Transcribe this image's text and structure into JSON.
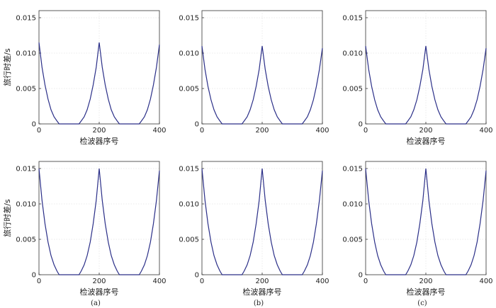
{
  "figure": {
    "panel_labels": [
      "(a)",
      "(b)",
      "(c)"
    ]
  },
  "style": {
    "line_color": "#2b2f88",
    "grid": true
  },
  "chart_data": [
    {
      "type": "line",
      "row": 1,
      "col": 1,
      "xlabel": "检波器序号",
      "ylabel": "旅行时差/s",
      "xlim": [
        0,
        400
      ],
      "ylim": [
        0,
        0.016
      ],
      "xticks": [
        "0",
        "200",
        "400"
      ],
      "yticks": [
        "0",
        "0.005",
        "0.010",
        "0.015"
      ],
      "series": [
        {
          "x": [
            0,
            10,
            20,
            30,
            40,
            50,
            60,
            67,
            133,
            140,
            150,
            160,
            170,
            180,
            190,
            200,
            210,
            220,
            230,
            240,
            250,
            260,
            267,
            333,
            340,
            350,
            360,
            370,
            380,
            390,
            400
          ],
          "y": [
            0.0115,
            0.008,
            0.0055,
            0.0035,
            0.002,
            0.001,
            0.0004,
            0,
            0,
            0.0004,
            0.001,
            0.002,
            0.0035,
            0.0055,
            0.008,
            0.0115,
            0.008,
            0.0055,
            0.0035,
            0.002,
            0.001,
            0.0004,
            0,
            0,
            0.0004,
            0.001,
            0.002,
            0.0035,
            0.0055,
            0.008,
            0.0112
          ]
        }
      ]
    },
    {
      "type": "line",
      "row": 1,
      "col": 2,
      "xlabel": "",
      "ylabel": "",
      "xlim": [
        0,
        400
      ],
      "ylim": [
        0,
        0.016
      ],
      "xticks": [
        "0",
        "200",
        "400"
      ],
      "yticks": [
        "0",
        "0.005",
        "0.010",
        "0.015"
      ],
      "series": [
        {
          "x": [
            0,
            10,
            20,
            30,
            40,
            50,
            60,
            67,
            133,
            140,
            150,
            160,
            170,
            180,
            190,
            200,
            210,
            220,
            230,
            240,
            250,
            260,
            267,
            333,
            340,
            350,
            360,
            370,
            380,
            390,
            400
          ],
          "y": [
            0.011,
            0.0077,
            0.0053,
            0.0034,
            0.002,
            0.001,
            0.0004,
            0,
            0,
            0.0004,
            0.001,
            0.002,
            0.0034,
            0.0053,
            0.0077,
            0.011,
            0.0077,
            0.0053,
            0.0034,
            0.002,
            0.001,
            0.0004,
            0,
            0,
            0.0004,
            0.001,
            0.002,
            0.0034,
            0.0053,
            0.0077,
            0.0107
          ]
        }
      ]
    },
    {
      "type": "line",
      "row": 1,
      "col": 3,
      "xlabel": "检波器序号",
      "ylabel": "",
      "xlim": [
        0,
        400
      ],
      "ylim": [
        0,
        0.016
      ],
      "xticks": [
        "0",
        "200",
        "400"
      ],
      "yticks": [
        "0",
        "0.005",
        "0.010",
        "0.015"
      ],
      "series": [
        {
          "x": [
            0,
            10,
            20,
            30,
            40,
            50,
            60,
            67,
            133,
            140,
            150,
            160,
            170,
            180,
            190,
            200,
            210,
            220,
            230,
            240,
            250,
            260,
            267,
            333,
            340,
            350,
            360,
            370,
            380,
            390,
            400
          ],
          "y": [
            0.011,
            0.0077,
            0.0053,
            0.0034,
            0.002,
            0.001,
            0.0004,
            0,
            0,
            0.0004,
            0.001,
            0.002,
            0.0034,
            0.0053,
            0.0077,
            0.011,
            0.0077,
            0.0053,
            0.0034,
            0.002,
            0.001,
            0.0004,
            0,
            0,
            0.0004,
            0.001,
            0.002,
            0.0034,
            0.0053,
            0.0077,
            0.0107
          ]
        }
      ]
    },
    {
      "type": "line",
      "row": 2,
      "col": 1,
      "xlabel": "检波器序号",
      "ylabel": "旅行时差/s",
      "xlim": [
        0,
        400
      ],
      "ylim": [
        0,
        0.016
      ],
      "xticks": [
        "0",
        "200",
        "400"
      ],
      "yticks": [
        "0",
        "0.005",
        "0.010",
        "0.015"
      ],
      "series": [
        {
          "x": [
            0,
            10,
            20,
            30,
            40,
            50,
            60,
            67,
            133,
            140,
            150,
            160,
            170,
            180,
            190,
            200,
            210,
            220,
            230,
            240,
            250,
            260,
            267,
            333,
            340,
            350,
            360,
            370,
            380,
            390,
            400
          ],
          "y": [
            0.015,
            0.0105,
            0.0072,
            0.0046,
            0.0027,
            0.0014,
            0.0005,
            0,
            0,
            0.0005,
            0.0014,
            0.0027,
            0.0046,
            0.0072,
            0.0105,
            0.015,
            0.0105,
            0.0072,
            0.0046,
            0.0027,
            0.0014,
            0.0005,
            0,
            0,
            0.0005,
            0.0014,
            0.0027,
            0.0046,
            0.0072,
            0.0105,
            0.0147
          ]
        }
      ]
    },
    {
      "type": "line",
      "row": 2,
      "col": 2,
      "xlabel": "检波器序号",
      "ylabel": "",
      "xlim": [
        0,
        400
      ],
      "ylim": [
        0,
        0.016
      ],
      "xticks": [
        "0",
        "200",
        "400"
      ],
      "yticks": [
        "0",
        "0.005",
        "0.010",
        "0.015"
      ],
      "series": [
        {
          "x": [
            0,
            10,
            20,
            30,
            40,
            50,
            60,
            67,
            133,
            140,
            150,
            160,
            170,
            180,
            190,
            200,
            210,
            220,
            230,
            240,
            250,
            260,
            267,
            333,
            340,
            350,
            360,
            370,
            380,
            390,
            400
          ],
          "y": [
            0.015,
            0.0105,
            0.0072,
            0.0046,
            0.0027,
            0.0014,
            0.0005,
            0,
            0,
            0.0005,
            0.0014,
            0.0027,
            0.0046,
            0.0072,
            0.0105,
            0.015,
            0.0105,
            0.0072,
            0.0046,
            0.0027,
            0.0014,
            0.0005,
            0,
            0,
            0.0005,
            0.0014,
            0.0027,
            0.0046,
            0.0072,
            0.0105,
            0.0147
          ]
        }
      ]
    },
    {
      "type": "line",
      "row": 2,
      "col": 3,
      "xlabel": "检波器序号",
      "ylabel": "",
      "xlim": [
        0,
        400
      ],
      "ylim": [
        0,
        0.016
      ],
      "xticks": [
        "0",
        "200",
        "400"
      ],
      "yticks": [
        "0",
        "0.005",
        "0.010",
        "0.015"
      ],
      "series": [
        {
          "x": [
            0,
            10,
            20,
            30,
            40,
            50,
            60,
            67,
            133,
            140,
            150,
            160,
            170,
            180,
            190,
            200,
            210,
            220,
            230,
            240,
            250,
            260,
            267,
            333,
            340,
            350,
            360,
            370,
            380,
            390,
            400
          ],
          "y": [
            0.015,
            0.0105,
            0.0072,
            0.0046,
            0.0027,
            0.0014,
            0.0005,
            0,
            0,
            0.0005,
            0.0014,
            0.0027,
            0.0046,
            0.0072,
            0.0105,
            0.015,
            0.0105,
            0.0072,
            0.0046,
            0.0027,
            0.0014,
            0.0005,
            0,
            0,
            0.0005,
            0.0014,
            0.0027,
            0.0046,
            0.0072,
            0.0105,
            0.0147
          ]
        }
      ]
    }
  ]
}
